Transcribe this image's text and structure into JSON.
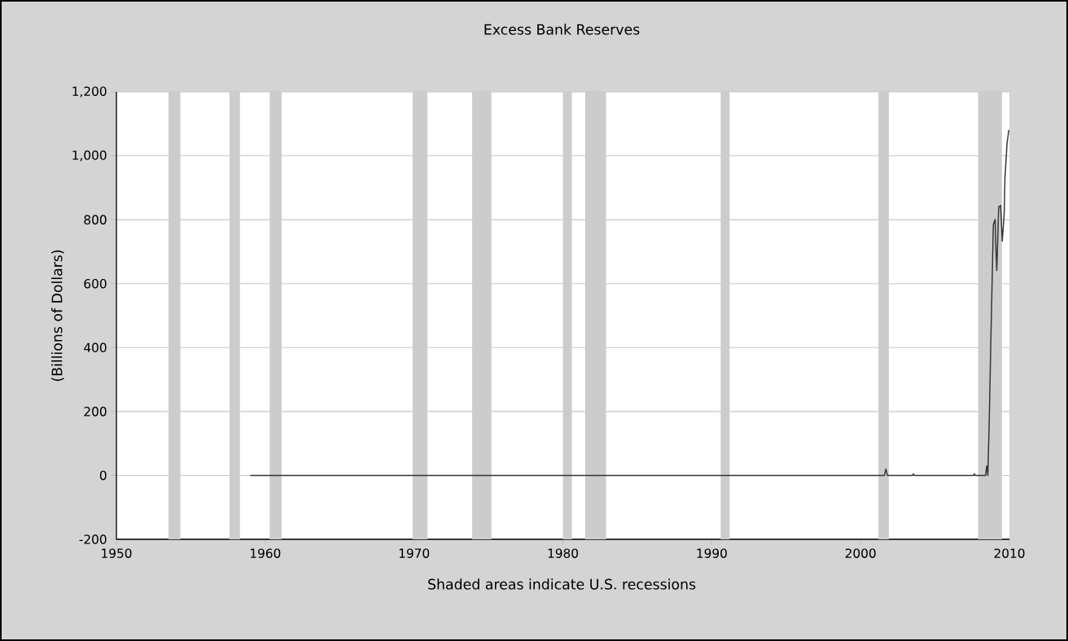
{
  "chart_data": {
    "type": "line",
    "title": "Excess Bank Reserves",
    "ylabel": "(Billions of Dollars)",
    "annotations": [
      "Shaded areas indicate U.S. recessions"
    ],
    "x": [
      1959.0,
      2001.6,
      2001.7,
      2001.8,
      2003.5,
      2003.55,
      2003.6,
      2007.6,
      2007.65,
      2007.7,
      2008.4,
      2008.48,
      2008.55,
      2008.64,
      2008.75,
      2008.92,
      2009.04,
      2009.08,
      2009.15,
      2009.28,
      2009.41,
      2009.52,
      2009.65,
      2009.7,
      2009.84,
      2009.96
    ],
    "series": [
      {
        "color": "#333333",
        "values": [
          0,
          0,
          20,
          0,
          0,
          5,
          0,
          0,
          5,
          0,
          0,
          30,
          0,
          160,
          415,
          784,
          801,
          725,
          641,
          840,
          845,
          733,
          819,
          929,
          1038,
          1081
        ]
      }
    ],
    "xlim": [
      1950,
      2010
    ],
    "xticks": [
      1950,
      1960,
      1970,
      1980,
      1990,
      2000,
      2010
    ],
    "ylim": [
      -200,
      1200
    ],
    "yticks": [
      -200,
      0,
      200,
      400,
      600,
      800,
      {
        "value": 1000,
        "label": "1,000"
      },
      {
        "value": 1200,
        "label": "1,200"
      }
    ],
    "grid": "y",
    "marker": "none",
    "line_style": "solid",
    "bands": [
      {
        "axis": "x",
        "from": 1953.5,
        "to": 1954.3,
        "color": "#cccccc"
      },
      {
        "axis": "x",
        "from": 1957.6,
        "to": 1958.3,
        "color": "#cccccc"
      },
      {
        "axis": "x",
        "from": 1960.3,
        "to": 1961.1,
        "color": "#cccccc"
      },
      {
        "axis": "x",
        "from": 1969.9,
        "to": 1970.9,
        "color": "#cccccc"
      },
      {
        "axis": "x",
        "from": 1973.9,
        "to": 1975.2,
        "color": "#cccccc"
      },
      {
        "axis": "x",
        "from": 1980.0,
        "to": 1980.6,
        "color": "#cccccc"
      },
      {
        "axis": "x",
        "from": 1981.5,
        "to": 1982.9,
        "color": "#cccccc"
      },
      {
        "axis": "x",
        "from": 1990.6,
        "to": 1991.2,
        "color": "#cccccc"
      },
      {
        "axis": "x",
        "from": 2001.2,
        "to": 2001.9,
        "color": "#cccccc"
      },
      {
        "axis": "x",
        "from": 2007.9,
        "to": 2009.5,
        "color": "#cccccc"
      }
    ]
  }
}
